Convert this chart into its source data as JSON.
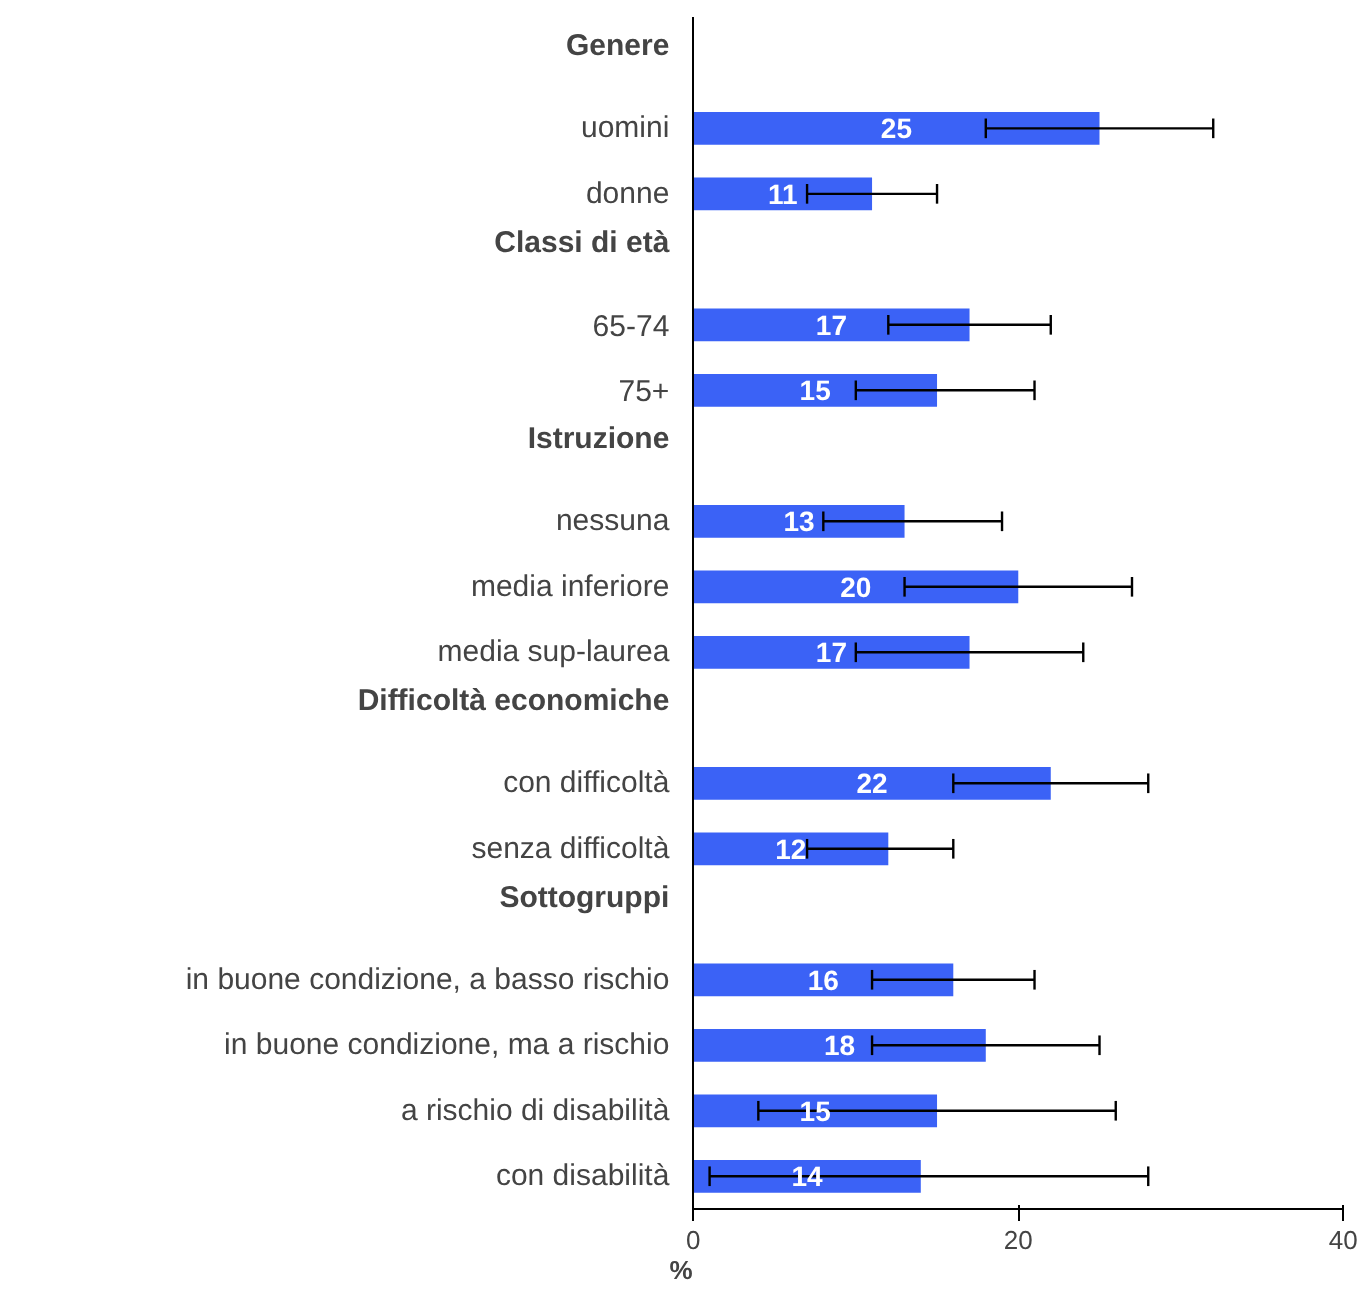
{
  "chart_data": {
    "type": "bar",
    "orientation": "horizontal",
    "xlabel": "%",
    "categories": [
      "Genere",
      "uomini",
      "donne",
      "Classi di età",
      "65-74",
      "75+",
      "Istruzione",
      "nessuna",
      "media inferiore",
      "media sup-laurea",
      "Difficoltà economiche",
      "con difficoltà",
      "senza difficoltà",
      "Sottogruppi",
      "in buone condizione, a basso rischio",
      "in buone condizione, ma a rischio",
      "a rischio di disabilità",
      "con disabilità"
    ],
    "values": [
      null,
      25,
      11,
      null,
      17,
      15,
      null,
      13,
      20,
      17,
      null,
      22,
      12,
      null,
      16,
      18,
      15,
      14
    ],
    "errors": [
      null,
      [
        18,
        32
      ],
      [
        7,
        15
      ],
      null,
      [
        12,
        22
      ],
      [
        10,
        21
      ],
      null,
      [
        8,
        19
      ],
      [
        13,
        27
      ],
      [
        10,
        24
      ],
      null,
      [
        16,
        28
      ],
      [
        7,
        16
      ],
      null,
      [
        11,
        21
      ],
      [
        11,
        25
      ],
      [
        4,
        26
      ],
      [
        1,
        28
      ]
    ],
    "color": "#3b62f6",
    "data_labels": true,
    "xlim": [
      0,
      40
    ],
    "xticks": [
      0,
      20,
      40
    ],
    "grid": false
  }
}
